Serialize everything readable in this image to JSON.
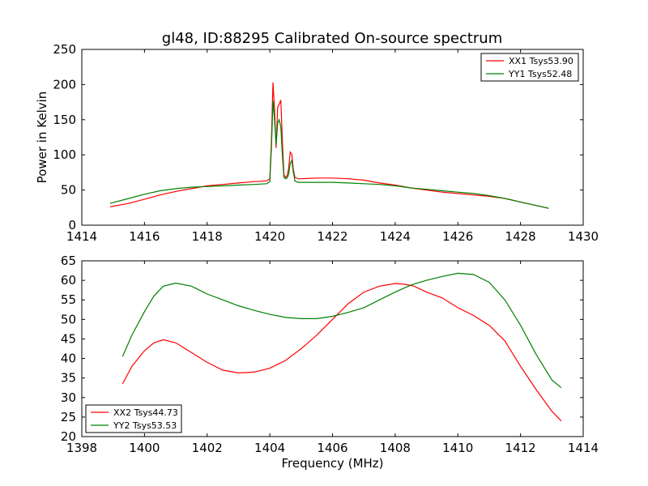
{
  "figure": {
    "title": "gl48, ID:88295 Calibrated On-source spectrum"
  },
  "chart_data": [
    {
      "type": "line",
      "title": "gl48, ID:88295 Calibrated On-source spectrum",
      "xlabel": "",
      "ylabel": "Power in Kelvin",
      "xlim": [
        1414,
        1430
      ],
      "ylim": [
        0,
        250
      ],
      "xticks": [
        "1414",
        "1416",
        "1418",
        "1420",
        "1422",
        "1424",
        "1426",
        "1428",
        "1430"
      ],
      "yticks": [
        "0",
        "50",
        "100",
        "150",
        "200",
        "250"
      ],
      "grid": false,
      "legend_position": "top-right",
      "series": [
        {
          "name": "XX1 Tsys53.90",
          "color": "#ff0000",
          "x": [
            1414.9,
            1415.5,
            1416.0,
            1416.5,
            1417.0,
            1417.5,
            1418.0,
            1418.5,
            1419.0,
            1419.5,
            1419.9,
            1420.0,
            1420.05,
            1420.1,
            1420.15,
            1420.2,
            1420.25,
            1420.3,
            1420.35,
            1420.4,
            1420.45,
            1420.5,
            1420.55,
            1420.6,
            1420.65,
            1420.7,
            1420.75,
            1420.8,
            1420.9,
            1421.0,
            1421.5,
            1422.0,
            1422.5,
            1423.0,
            1423.5,
            1424.0,
            1424.5,
            1425.0,
            1425.5,
            1426.0,
            1426.5,
            1427.0,
            1427.5,
            1428.0,
            1428.5,
            1428.9
          ],
          "y": [
            26,
            31,
            37,
            43,
            48,
            52,
            56,
            58,
            60,
            62,
            63,
            66,
            120,
            203,
            165,
            110,
            168,
            172,
            178,
            120,
            72,
            68,
            70,
            80,
            104,
            101,
            80,
            68,
            66,
            66,
            67,
            67,
            66,
            64,
            60,
            57,
            53,
            50,
            47,
            45,
            43,
            41,
            38,
            33,
            28,
            24
          ]
        },
        {
          "name": "YY1 Tsys52.48",
          "color": "#008000",
          "x": [
            1414.9,
            1415.5,
            1416.0,
            1416.5,
            1417.0,
            1417.5,
            1418.0,
            1418.5,
            1419.0,
            1419.5,
            1419.9,
            1420.0,
            1420.05,
            1420.1,
            1420.15,
            1420.2,
            1420.25,
            1420.3,
            1420.35,
            1420.4,
            1420.45,
            1420.5,
            1420.55,
            1420.6,
            1420.65,
            1420.7,
            1420.75,
            1420.8,
            1420.9,
            1421.0,
            1421.5,
            1422.0,
            1422.5,
            1423.0,
            1423.5,
            1424.0,
            1424.5,
            1425.0,
            1425.5,
            1426.0,
            1426.5,
            1427.0,
            1427.5,
            1428.0,
            1428.5,
            1428.9
          ],
          "y": [
            31,
            38,
            44,
            49,
            52,
            54,
            55,
            56,
            57,
            58,
            59,
            62,
            110,
            177,
            150,
            115,
            145,
            150,
            140,
            100,
            68,
            66,
            67,
            72,
            88,
            92,
            76,
            63,
            61,
            61,
            61,
            61,
            60,
            59,
            58,
            56,
            53,
            51,
            49,
            47,
            45,
            42,
            38,
            33,
            28,
            24
          ]
        }
      ]
    },
    {
      "type": "line",
      "title": "",
      "xlabel": "Frequency (MHz)",
      "ylabel": "",
      "xlim": [
        1398,
        1414
      ],
      "ylim": [
        20,
        65
      ],
      "xticks": [
        "1398",
        "1400",
        "1402",
        "1404",
        "1406",
        "1408",
        "1410",
        "1412",
        "1414"
      ],
      "yticks": [
        "20",
        "25",
        "30",
        "35",
        "40",
        "45",
        "50",
        "55",
        "60",
        "65"
      ],
      "grid": false,
      "legend_position": "bottom-left",
      "series": [
        {
          "name": "XX2 Tsys44.73",
          "color": "#ff0000",
          "x": [
            1399.3,
            1399.6,
            1400.0,
            1400.3,
            1400.6,
            1401.0,
            1401.5,
            1402.0,
            1402.5,
            1403.0,
            1403.5,
            1404.0,
            1404.5,
            1405.0,
            1405.5,
            1406.0,
            1406.5,
            1407.0,
            1407.5,
            1408.0,
            1408.3,
            1408.6,
            1409.0,
            1409.5,
            1410.0,
            1410.5,
            1411.0,
            1411.5,
            1412.0,
            1412.5,
            1413.0,
            1413.3
          ],
          "y": [
            33.5,
            38,
            42,
            44,
            44.8,
            44,
            41.5,
            39,
            37,
            36.3,
            36.5,
            37.5,
            39.5,
            42.5,
            46,
            50,
            54,
            57,
            58.5,
            59.2,
            59,
            58.5,
            57,
            55.5,
            53,
            51,
            48.5,
            44.5,
            38,
            32,
            26.5,
            24
          ]
        },
        {
          "name": "YY2 Tsys53.53",
          "color": "#008000",
          "x": [
            1399.3,
            1399.6,
            1400.0,
            1400.3,
            1400.6,
            1401.0,
            1401.5,
            1402.0,
            1402.5,
            1403.0,
            1403.5,
            1404.0,
            1404.5,
            1405.0,
            1405.5,
            1406.0,
            1406.5,
            1407.0,
            1407.5,
            1408.0,
            1408.5,
            1409.0,
            1409.5,
            1410.0,
            1410.5,
            1411.0,
            1411.5,
            1412.0,
            1412.5,
            1413.0,
            1413.3
          ],
          "y": [
            40.5,
            46,
            52,
            56,
            58.5,
            59.3,
            58.5,
            56.5,
            55,
            53.5,
            52.3,
            51.3,
            50.5,
            50.2,
            50.2,
            50.8,
            51.8,
            53,
            55,
            57,
            58.8,
            60,
            61,
            61.8,
            61.5,
            59.5,
            55,
            48.5,
            41,
            34.5,
            32.5
          ]
        }
      ]
    }
  ]
}
